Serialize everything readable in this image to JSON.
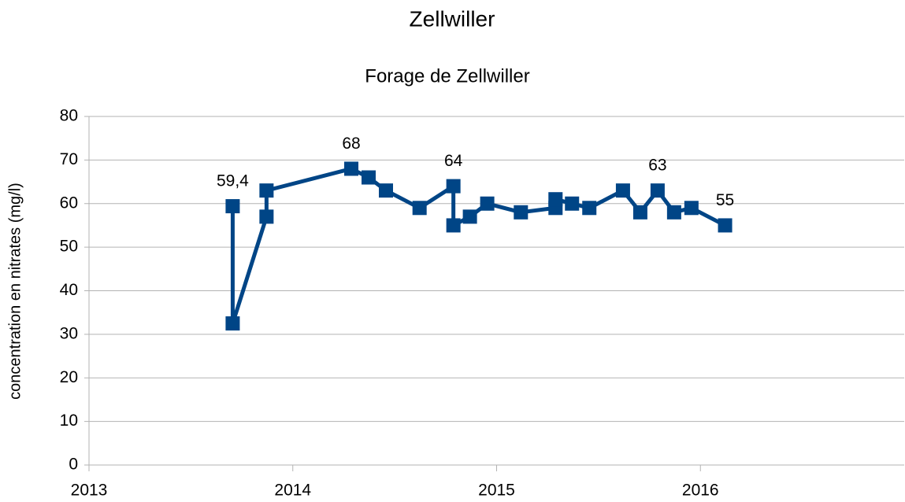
{
  "chart_data": {
    "type": "line",
    "title": "Zellwiller",
    "subtitle": "Forage de Zellwiller",
    "y_label": "concentration en nitrates (mg/l)",
    "xlim": [
      2013,
      2017
    ],
    "xticks": [
      2013,
      2014,
      2015,
      2016
    ],
    "ylim": [
      0,
      80
    ],
    "yticks": [
      0,
      10,
      20,
      30,
      40,
      50,
      60,
      70,
      80
    ],
    "grid": true,
    "series": [
      {
        "name": "Forage de Zellwiller",
        "color": "#004586",
        "x": [
          2013.705,
          2013.705,
          2013.871,
          2013.871,
          2014.287,
          2014.372,
          2014.457,
          2014.622,
          2014.788,
          2014.788,
          2014.869,
          2014.954,
          2015.119,
          2015.289,
          2015.289,
          2015.37,
          2015.455,
          2015.62,
          2015.705,
          2015.79,
          2015.871,
          2015.956,
          2016.121
        ],
        "values": [
          59.4,
          32.5,
          57,
          63,
          68,
          66,
          63,
          59,
          64,
          55,
          57,
          60,
          58,
          59,
          61,
          60,
          59,
          63,
          58,
          63,
          58,
          59,
          55
        ],
        "value_labels": [
          "59,4",
          null,
          null,
          null,
          "68",
          null,
          null,
          null,
          "64",
          null,
          null,
          null,
          null,
          null,
          null,
          null,
          null,
          null,
          null,
          "63",
          null,
          null,
          "55"
        ]
      }
    ]
  }
}
